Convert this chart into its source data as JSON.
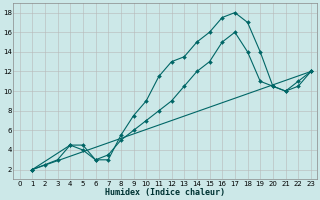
{
  "xlabel": "Humidex (Indice chaleur)",
  "ylabel": "",
  "bg_color": "#cce8e8",
  "grid_color": "#b8b8b8",
  "line_color": "#006666",
  "xlim": [
    -0.5,
    23.5
  ],
  "ylim": [
    1,
    19
  ],
  "xticks": [
    0,
    1,
    2,
    3,
    4,
    5,
    6,
    7,
    8,
    9,
    10,
    11,
    12,
    13,
    14,
    15,
    16,
    17,
    18,
    19,
    20,
    21,
    22,
    23
  ],
  "yticks": [
    2,
    4,
    6,
    8,
    10,
    12,
    14,
    16,
    18
  ],
  "line1_x": [
    1,
    2,
    3,
    4,
    5,
    6,
    7,
    8,
    9,
    10,
    11,
    12,
    13,
    14,
    15,
    16,
    17,
    18,
    19,
    20,
    21,
    22,
    23
  ],
  "line1_y": [
    2,
    2.5,
    3,
    4.5,
    4,
    3,
    3,
    5.5,
    7.5,
    9,
    11.5,
    13,
    13.5,
    15,
    16,
    17.5,
    18,
    17,
    14,
    10.5,
    10,
    10.5,
    12
  ],
  "line2_x": [
    1,
    4,
    5,
    6,
    7,
    8,
    9,
    10,
    11,
    12,
    13,
    14,
    15,
    16,
    17,
    18,
    19,
    20,
    21,
    22,
    23
  ],
  "line2_y": [
    2,
    4.5,
    4.5,
    3,
    3.5,
    5,
    6,
    7,
    8,
    9,
    10.5,
    12,
    13,
    15,
    16,
    14,
    11,
    10.5,
    10,
    11,
    12
  ],
  "line3_x": [
    1,
    23
  ],
  "line3_y": [
    2,
    12
  ],
  "marker_size": 2.0,
  "line_width": 0.8,
  "tick_fontsize": 5.0,
  "xlabel_fontsize": 6.0
}
